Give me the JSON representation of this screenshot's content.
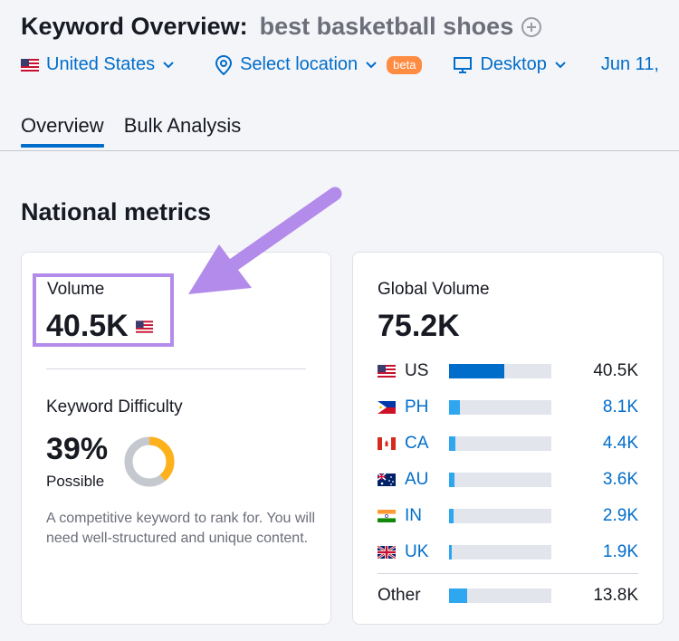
{
  "header": {
    "title": "Keyword Overview:",
    "keyword": "best basketball shoes"
  },
  "filters": {
    "country": "United States",
    "location": "Select location",
    "location_badge": "beta",
    "device": "Desktop",
    "date": "Jun 11,"
  },
  "tabs": [
    {
      "label": "Overview",
      "active": true
    },
    {
      "label": "Bulk Analysis",
      "active": false
    }
  ],
  "section_title": "National metrics",
  "volume": {
    "label": "Volume",
    "value": "40.5K"
  },
  "keyword_difficulty": {
    "label": "Keyword Difficulty",
    "value": "39%",
    "percent": 39,
    "status": "Possible",
    "description": "A competitive keyword to rank for. You will need well-structured and unique content."
  },
  "global_volume": {
    "label": "Global Volume",
    "value": "75.2K",
    "countries": [
      {
        "code": "US",
        "value": "40.5K",
        "share": 0.54
      },
      {
        "code": "PH",
        "value": "8.1K",
        "share": 0.11
      },
      {
        "code": "CA",
        "value": "4.4K",
        "share": 0.06
      },
      {
        "code": "AU",
        "value": "3.6K",
        "share": 0.05
      },
      {
        "code": "IN",
        "value": "2.9K",
        "share": 0.04
      },
      {
        "code": "UK",
        "value": "1.9K",
        "share": 0.03
      }
    ],
    "other": {
      "label": "Other",
      "value": "13.8K",
      "share": 0.18
    }
  },
  "colors": {
    "accent": "#006dca",
    "highlight": "#b38bea",
    "donut_fill": "#ffb11b",
    "donut_track": "#c6c8d0"
  }
}
